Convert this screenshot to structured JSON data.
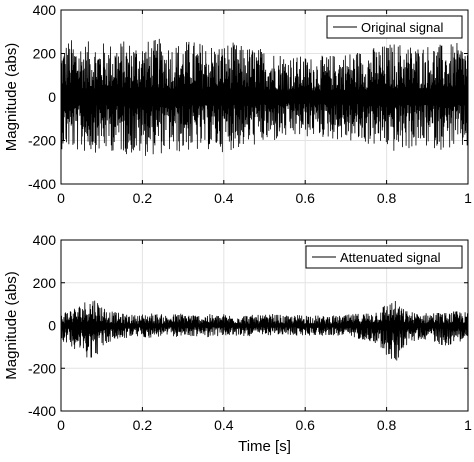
{
  "chart_data": [
    {
      "type": "line",
      "title": "",
      "xlabel": "",
      "ylabel": "Magnitude (abs)",
      "xlim": [
        0,
        1
      ],
      "ylim": [
        -400,
        400
      ],
      "xticks": [
        0,
        0.2,
        0.4,
        0.6,
        0.8,
        1
      ],
      "xtick_labels": [
        "0",
        "0.2",
        "0.4",
        "0.6",
        "0.8",
        "1"
      ],
      "yticks": [
        -400,
        -200,
        0,
        200,
        400
      ],
      "ytick_labels": [
        "-400",
        "-200",
        "0",
        "200",
        "400"
      ],
      "grid": true,
      "legend_position": "top-right",
      "line_color": "#000000",
      "series": [
        {
          "name": "Original signal",
          "x": [
            0,
            0.02,
            0.04,
            0.06,
            0.08,
            0.1,
            0.12,
            0.14,
            0.16,
            0.18,
            0.2,
            0.22,
            0.24,
            0.26,
            0.28,
            0.3,
            0.32,
            0.34,
            0.36,
            0.38,
            0.4,
            0.42,
            0.44,
            0.46,
            0.48,
            0.5,
            0.52,
            0.54,
            0.56,
            0.58,
            0.6,
            0.62,
            0.64,
            0.66,
            0.68,
            0.7,
            0.72,
            0.74,
            0.76,
            0.78,
            0.8,
            0.82,
            0.84,
            0.86,
            0.88,
            0.9,
            0.92,
            0.94,
            0.96,
            0.98,
            1
          ],
          "upper": [
            240,
            270,
            265,
            255,
            260,
            255,
            250,
            265,
            260,
            258,
            260,
            262,
            270,
            255,
            250,
            260,
            265,
            255,
            250,
            245,
            250,
            255,
            240,
            235,
            230,
            225,
            215,
            210,
            200,
            190,
            190,
            185,
            190,
            195,
            200,
            210,
            215,
            220,
            230,
            235,
            245,
            255,
            250,
            245,
            240,
            245,
            250,
            240,
            245,
            250,
            245
          ],
          "lower": [
            -240,
            -250,
            -255,
            -260,
            -255,
            -260,
            -250,
            -255,
            -265,
            -270,
            -275,
            -270,
            -265,
            -260,
            -265,
            -255,
            -250,
            -260,
            -245,
            -250,
            -255,
            -245,
            -240,
            -230,
            -225,
            -220,
            -215,
            -200,
            -195,
            -190,
            -190,
            -185,
            -190,
            -195,
            -200,
            -205,
            -215,
            -220,
            -225,
            -230,
            -240,
            -260,
            -250,
            -240,
            -245,
            -235,
            -240,
            -245,
            -240,
            -250,
            -245
          ]
        }
      ]
    },
    {
      "type": "line",
      "title": "",
      "xlabel": "Time [s]",
      "ylabel": "Magnitude (abs)",
      "xlim": [
        0,
        1
      ],
      "ylim": [
        -400,
        400
      ],
      "xticks": [
        0,
        0.2,
        0.4,
        0.6,
        0.8,
        1
      ],
      "xtick_labels": [
        "0",
        "0.2",
        "0.4",
        "0.6",
        "0.8",
        "1"
      ],
      "yticks": [
        -400,
        -200,
        0,
        200,
        400
      ],
      "ytick_labels": [
        "-400",
        "-200",
        "0",
        "200",
        "400"
      ],
      "grid": true,
      "legend_position": "top-right",
      "line_color": "#000000",
      "series": [
        {
          "name": "Attenuated signal",
          "x": [
            0,
            0.02,
            0.04,
            0.06,
            0.08,
            0.1,
            0.12,
            0.14,
            0.16,
            0.18,
            0.2,
            0.22,
            0.24,
            0.26,
            0.28,
            0.3,
            0.32,
            0.34,
            0.36,
            0.38,
            0.4,
            0.42,
            0.44,
            0.46,
            0.48,
            0.5,
            0.52,
            0.54,
            0.56,
            0.58,
            0.6,
            0.62,
            0.64,
            0.66,
            0.68,
            0.7,
            0.72,
            0.74,
            0.76,
            0.78,
            0.8,
            0.82,
            0.84,
            0.86,
            0.88,
            0.9,
            0.92,
            0.94,
            0.96,
            0.98,
            1
          ],
          "upper": [
            60,
            80,
            90,
            120,
            140,
            100,
            70,
            60,
            55,
            50,
            55,
            60,
            55,
            50,
            55,
            60,
            55,
            50,
            55,
            50,
            55,
            50,
            55,
            50,
            50,
            50,
            55,
            50,
            45,
            50,
            55,
            50,
            45,
            50,
            45,
            50,
            55,
            60,
            65,
            80,
            110,
            120,
            80,
            65,
            60,
            60,
            65,
            60,
            65,
            70,
            60
          ],
          "lower": [
            -70,
            -90,
            -120,
            -150,
            -160,
            -110,
            -80,
            -70,
            -60,
            -55,
            -55,
            -60,
            -55,
            -50,
            -55,
            -50,
            -55,
            -50,
            -55,
            -50,
            -50,
            -55,
            -50,
            -50,
            -55,
            -50,
            -45,
            -50,
            -45,
            -50,
            -50,
            -45,
            -50,
            -45,
            -50,
            -55,
            -60,
            -65,
            -75,
            -90,
            -150,
            -190,
            -110,
            -80,
            -70,
            -65,
            -80,
            -100,
            -90,
            -75,
            -70
          ]
        }
      ]
    }
  ]
}
